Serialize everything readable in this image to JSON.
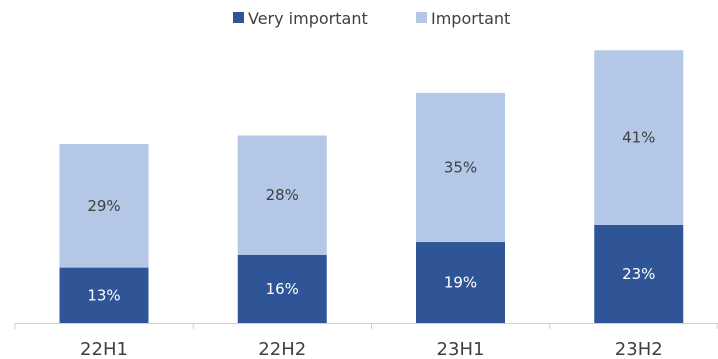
{
  "chart_data": {
    "type": "bar",
    "stacked": true,
    "categories": [
      "22H1",
      "22H2",
      "23H1",
      "23H2"
    ],
    "series": [
      {
        "name": "Very important",
        "values": [
          13,
          16,
          19,
          23
        ],
        "color": "#2f5597",
        "label_color": "#ffffff"
      },
      {
        "name": "Important",
        "values": [
          29,
          28,
          35,
          41
        ],
        "color": "#b4c7e7",
        "label_color": "#404040"
      }
    ],
    "value_suffix": "%",
    "legend_position": "top-center",
    "grid": false,
    "ylim": [
      0,
      65
    ],
    "title": "",
    "xlabel": "",
    "ylabel": ""
  }
}
